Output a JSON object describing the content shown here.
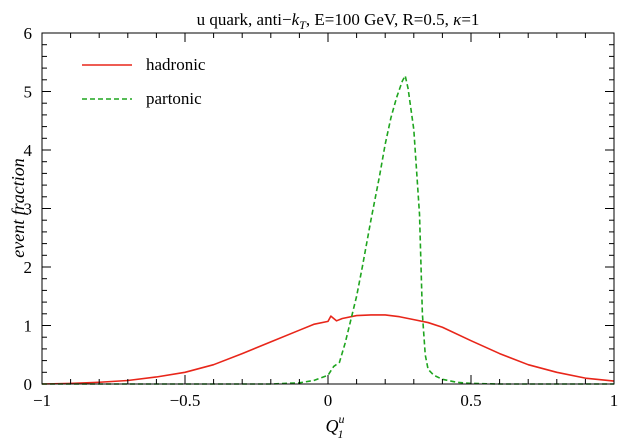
{
  "chart_data": {
    "type": "line",
    "title_parts": [
      "u quark, anti−",
      "k",
      "T",
      ", E=100 GeV, R=0.5, ",
      "κ",
      "=1"
    ],
    "xlabel_parts": [
      "Q",
      "u",
      "1"
    ],
    "ylabel": "event fraction",
    "xlim": [
      -1,
      1
    ],
    "ylim": [
      0,
      6
    ],
    "x_ticks": [
      -1,
      -0.5,
      0,
      0.5,
      1
    ],
    "x_tick_labels": [
      "−1",
      "−0.5",
      "0",
      "0.5",
      "1"
    ],
    "y_ticks": [
      0,
      1,
      2,
      3,
      4,
      5,
      6
    ],
    "y_tick_labels": [
      "0",
      "1",
      "2",
      "3",
      "4",
      "5",
      "6"
    ],
    "legend_position": "top-left",
    "grid": false,
    "series": [
      {
        "name": "hadronic",
        "color": "#e8261a",
        "dash": "solid",
        "x": [
          -1.0,
          -0.9,
          -0.8,
          -0.7,
          -0.6,
          -0.5,
          -0.4,
          -0.3,
          -0.2,
          -0.1,
          -0.05,
          0.0,
          0.01,
          0.03,
          0.05,
          0.1,
          0.15,
          0.2,
          0.25,
          0.3,
          0.35,
          0.4,
          0.5,
          0.6,
          0.7,
          0.8,
          0.9,
          1.0
        ],
        "y": [
          0.0,
          0.01,
          0.03,
          0.06,
          0.12,
          0.2,
          0.33,
          0.52,
          0.72,
          0.92,
          1.02,
          1.07,
          1.16,
          1.08,
          1.12,
          1.17,
          1.18,
          1.18,
          1.15,
          1.1,
          1.05,
          0.97,
          0.74,
          0.52,
          0.33,
          0.2,
          0.1,
          0.05
        ]
      },
      {
        "name": "partonic",
        "color": "#1fa51f",
        "dash": "dashed",
        "x": [
          -1.0,
          -0.5,
          -0.2,
          -0.1,
          -0.05,
          0.0,
          0.02,
          0.04,
          0.06,
          0.08,
          0.1,
          0.12,
          0.15,
          0.18,
          0.2,
          0.22,
          0.24,
          0.26,
          0.27,
          0.28,
          0.3,
          0.32,
          0.33,
          0.34,
          0.35,
          0.37,
          0.4,
          0.45,
          0.5,
          0.6,
          0.8,
          1.0
        ],
        "y": [
          0.0,
          0.0,
          0.0,
          0.02,
          0.06,
          0.15,
          0.3,
          0.37,
          0.7,
          1.1,
          1.5,
          2.0,
          2.8,
          3.55,
          4.1,
          4.55,
          4.9,
          5.18,
          5.27,
          5.05,
          4.35,
          2.9,
          1.2,
          0.5,
          0.25,
          0.15,
          0.08,
          0.03,
          0.01,
          0.0,
          0.0,
          0.0
        ]
      }
    ]
  }
}
